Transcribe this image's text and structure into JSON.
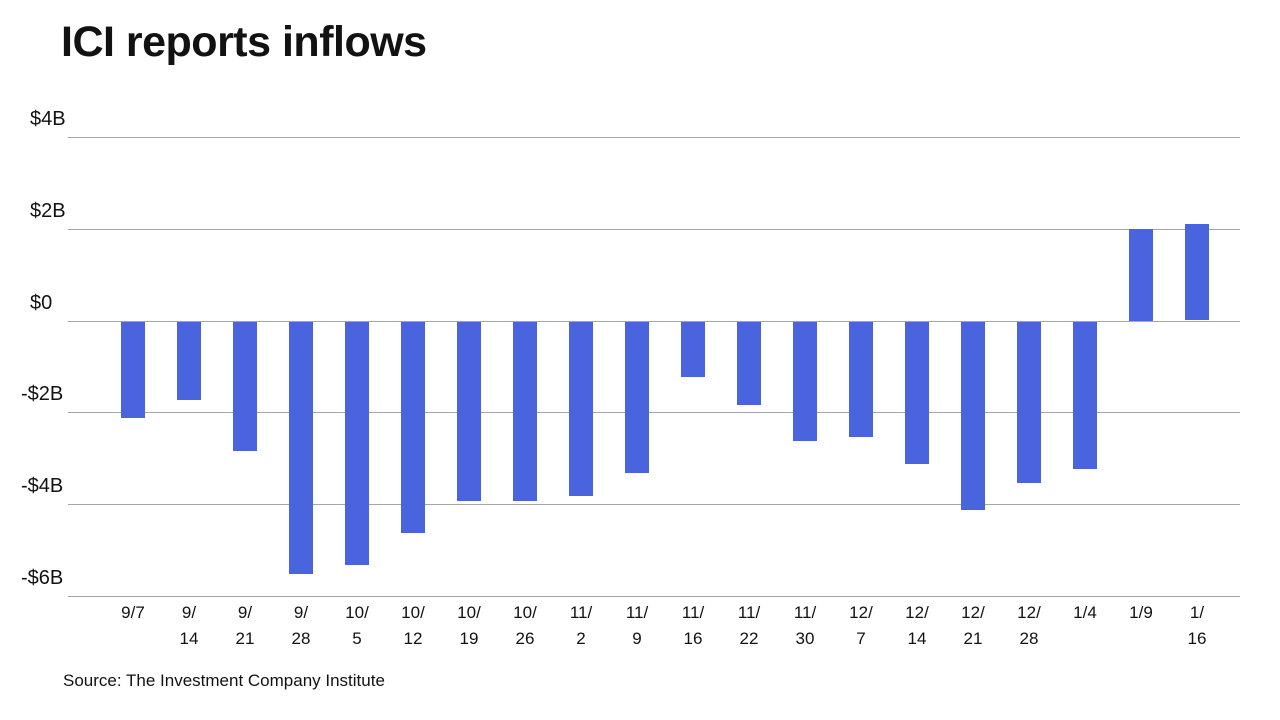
{
  "page": {
    "title": "ICI reports inflows",
    "source": "Source: The Investment Company Institute"
  },
  "chart_data": {
    "type": "bar",
    "title": "ICI reports inflows",
    "source": "Source: The Investment Company Institute",
    "categories": [
      "9/7",
      "9/14",
      "9/21",
      "9/28",
      "10/5",
      "10/12",
      "10/19",
      "10/26",
      "11/2",
      "11/9",
      "11/16",
      "11/22",
      "11/30",
      "12/7",
      "12/14",
      "12/21",
      "12/28",
      "1/4",
      "1/9",
      "1/16"
    ],
    "category_lines": [
      [
        "9/7"
      ],
      [
        "9/",
        "14"
      ],
      [
        "9/",
        "21"
      ],
      [
        "9/",
        "28"
      ],
      [
        "10/",
        "5"
      ],
      [
        "10/",
        "12"
      ],
      [
        "10/",
        "19"
      ],
      [
        "10/",
        "26"
      ],
      [
        "11/",
        "2"
      ],
      [
        "11/",
        "9"
      ],
      [
        "11/",
        "16"
      ],
      [
        "11/",
        "22"
      ],
      [
        "11/",
        "30"
      ],
      [
        "12/",
        "7"
      ],
      [
        "12/",
        "14"
      ],
      [
        "12/",
        "21"
      ],
      [
        "12/",
        "28"
      ],
      [
        "1/4"
      ],
      [
        "1/9"
      ],
      [
        "1/",
        "16"
      ]
    ],
    "values": [
      -2.1,
      -1.7,
      -2.8,
      -5.5,
      -5.3,
      -4.6,
      -3.9,
      -3.9,
      -3.8,
      -3.3,
      -1.2,
      -1.8,
      -2.6,
      -2.5,
      -3.1,
      -4.1,
      -3.5,
      -3.2,
      2.0,
      2.1
    ],
    "units": "billions USD",
    "y_ticks": [
      {
        "label": "$4B",
        "value": 4
      },
      {
        "label": "$2B",
        "value": 2
      },
      {
        "label": "$0",
        "value": 0
      },
      {
        "label": "-$2B",
        "value": -2
      },
      {
        "label": "-$4B",
        "value": -4
      },
      {
        "label": "-$6B",
        "value": -6
      }
    ],
    "ylim": [
      -6,
      4
    ],
    "grid": true,
    "legend": "none",
    "colors": {
      "bar": "#4a64e0",
      "grid": "#a6a6a6",
      "text": "#121212"
    }
  }
}
